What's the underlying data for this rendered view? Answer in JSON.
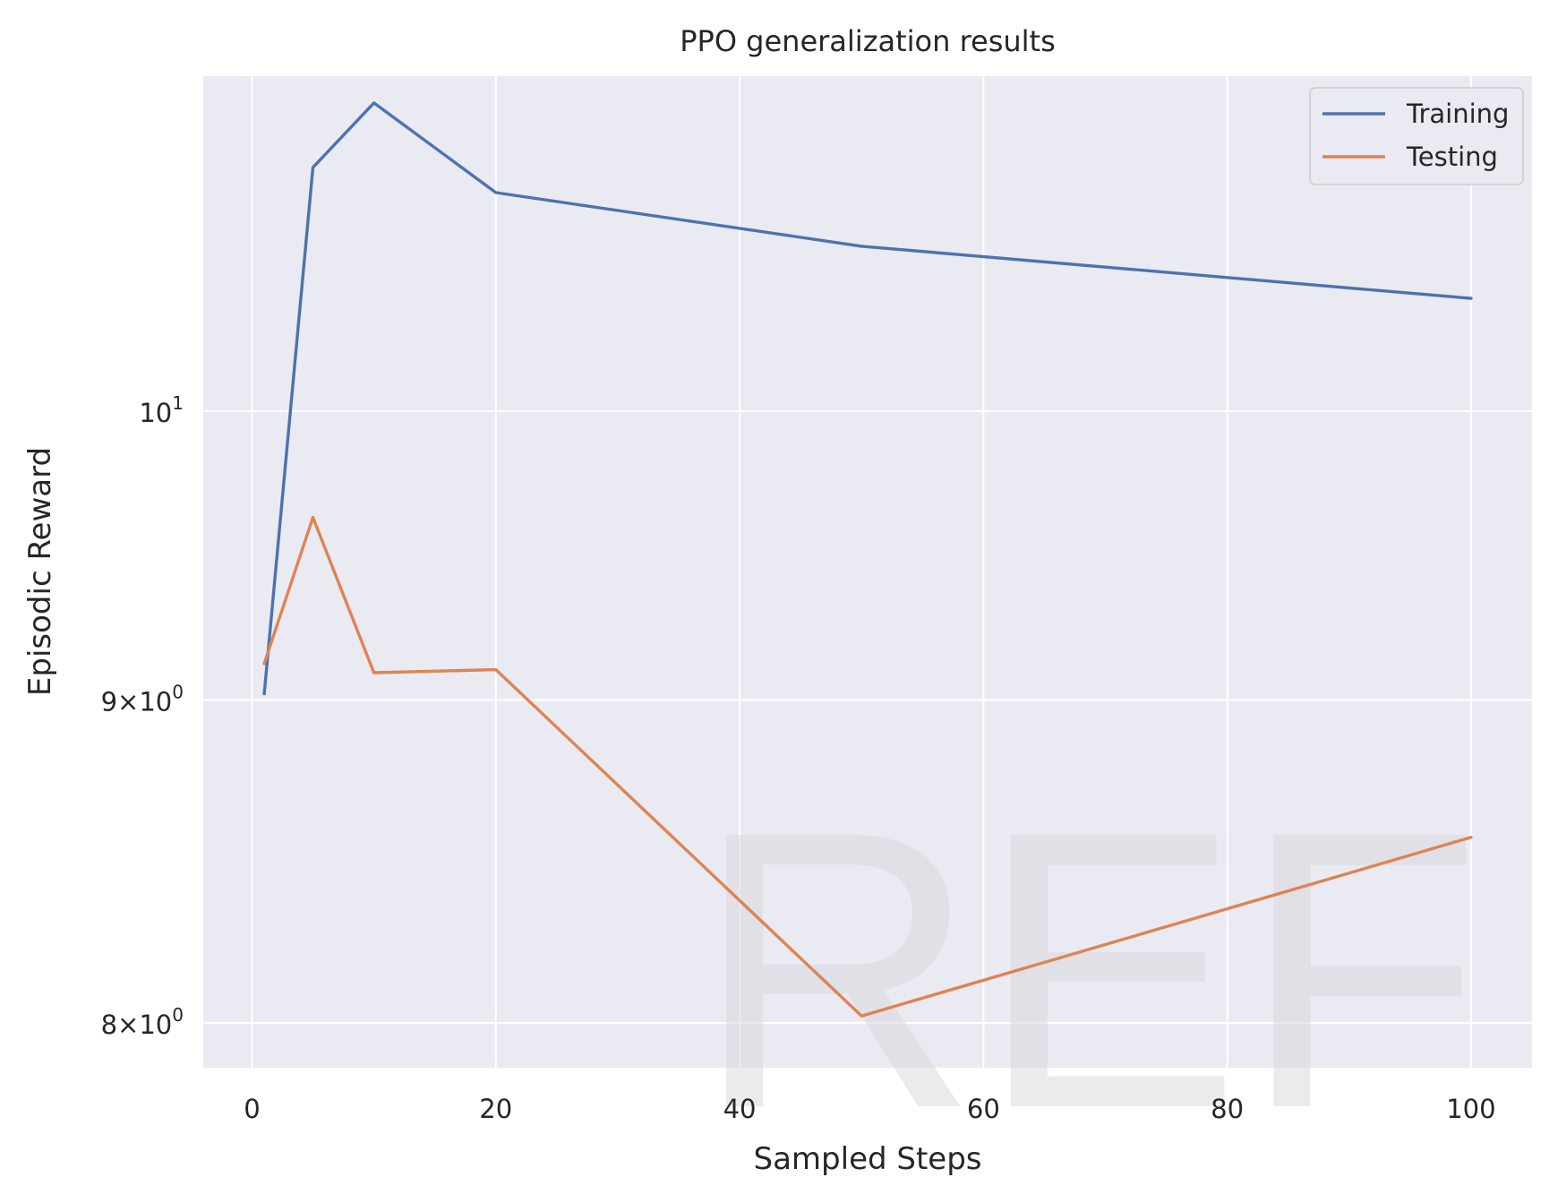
{
  "chart_data": {
    "type": "line",
    "title": "PPO generalization results",
    "xlabel": "Sampled Steps",
    "ylabel": "Episodic Reward",
    "x_scale": "linear",
    "y_scale": "log",
    "xlim": [
      -4.0,
      105.0
    ],
    "ylim": [
      7.87,
      11.3
    ],
    "x_ticks": [
      {
        "value": 0,
        "label": "0"
      },
      {
        "value": 20,
        "label": "20"
      },
      {
        "value": 40,
        "label": "40"
      },
      {
        "value": 60,
        "label": "60"
      },
      {
        "value": 80,
        "label": "80"
      },
      {
        "value": 100,
        "label": "100"
      }
    ],
    "y_ticks": [
      {
        "value": 8,
        "base": "8×10",
        "exp": "0"
      },
      {
        "value": 9,
        "base": "9×10",
        "exp": "0"
      },
      {
        "value": 10,
        "base": "10",
        "exp": "1"
      }
    ],
    "grid": true,
    "legend_position": "top-right",
    "x": [
      1,
      5,
      10,
      20,
      50,
      100
    ],
    "series": [
      {
        "name": "Training",
        "color": "#4c72b0",
        "values": [
          9.02,
          10.93,
          11.19,
          10.83,
          10.62,
          10.42
        ]
      },
      {
        "name": "Testing",
        "color": "#dd8452",
        "values": [
          9.12,
          9.62,
          9.09,
          9.1,
          8.02,
          8.56
        ]
      }
    ]
  },
  "watermark": "REF",
  "colors": {
    "plot_background": "#eaeaf2",
    "grid": "#ffffff",
    "text": "#262626"
  }
}
